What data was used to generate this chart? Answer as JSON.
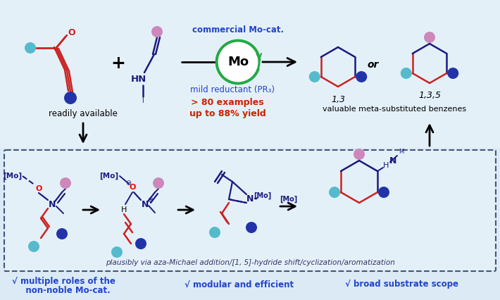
{
  "bg_color": "#dbeaf5",
  "bg_color_top": "#e4f0f8",
  "top_text_color": "#2244cc",
  "red_text_color": "#cc2200",
  "dark_color": "#1a1a80",
  "red_bond": "#cc2222",
  "mo_circle_color": "#22aa44",
  "ball_teal": "#55bbcc",
  "ball_pink": "#cc88bb",
  "ball_blue": "#2233aa",
  "bottom_text1": "√ multiple roles of the\n   non-noble Mo-cat.",
  "bottom_text2": "√ modular and efficient",
  "bottom_text3": "√ broad substrate scope",
  "mechanism_text": "plausibly via aza-Michael addition/[1, 5]-hydride shift/cyclization/aromatization",
  "label_commercial": "commercial Mo-cat.",
  "label_mild": "mild reductant (PR₃)",
  "label_80": "> 80 examples",
  "label_88": "up to 88% yield",
  "label_available": "readily available",
  "label_valuable": "valuable meta-substituted benzenes",
  "label_13": "1,3",
  "label_135": "1,3,5",
  "label_or": "or",
  "label_mo": "Mo"
}
